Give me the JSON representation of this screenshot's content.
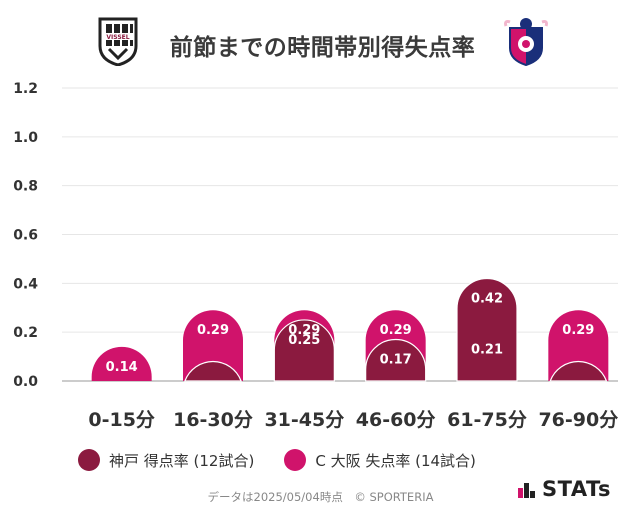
{
  "header": {
    "title": "前節までの時間帯別得失点率",
    "home_logo_text": "VISSEL"
  },
  "colors": {
    "home": "#8b1a3f",
    "away": "#d0136b",
    "grid": "#e6e6e6",
    "axis": "#333333"
  },
  "chart_data": {
    "type": "bar",
    "title": "前節までの時間帯別得失点率",
    "categories": [
      "0-15分",
      "16-30分",
      "31-45分",
      "46-60分",
      "61-75分",
      "76-90分"
    ],
    "ylim": [
      0,
      1.2
    ],
    "yticks": [
      "0.0",
      "0.2",
      "0.4",
      "0.6",
      "0.8",
      "1.0",
      "1.2"
    ],
    "series": [
      {
        "name": "神戸 得点率 (12試合)",
        "values": [
          0,
          0.08,
          0.25,
          0.17,
          0.42,
          0.08
        ],
        "labels": [
          "",
          "",
          "0.25",
          "0.17",
          "0.42",
          ""
        ]
      },
      {
        "name": "C大阪 失点率 (14試合)",
        "values": [
          0.14,
          0.29,
          0.29,
          0.29,
          0.21,
          0.29
        ],
        "labels": [
          "0.14",
          "0.29",
          "0.29",
          "0.29",
          "0.21",
          "0.29"
        ]
      }
    ],
    "grid": true,
    "legend": "bottom"
  },
  "legend": {
    "home_label": "神戸 得点率 (12試合)",
    "away_label": "C 大阪 失点率 (14試合)"
  },
  "footer": {
    "note": "データは2025/05/04時点　© SPORTERIA"
  },
  "brand": {
    "name": "STATs",
    "icon": "stats-bars-icon"
  }
}
